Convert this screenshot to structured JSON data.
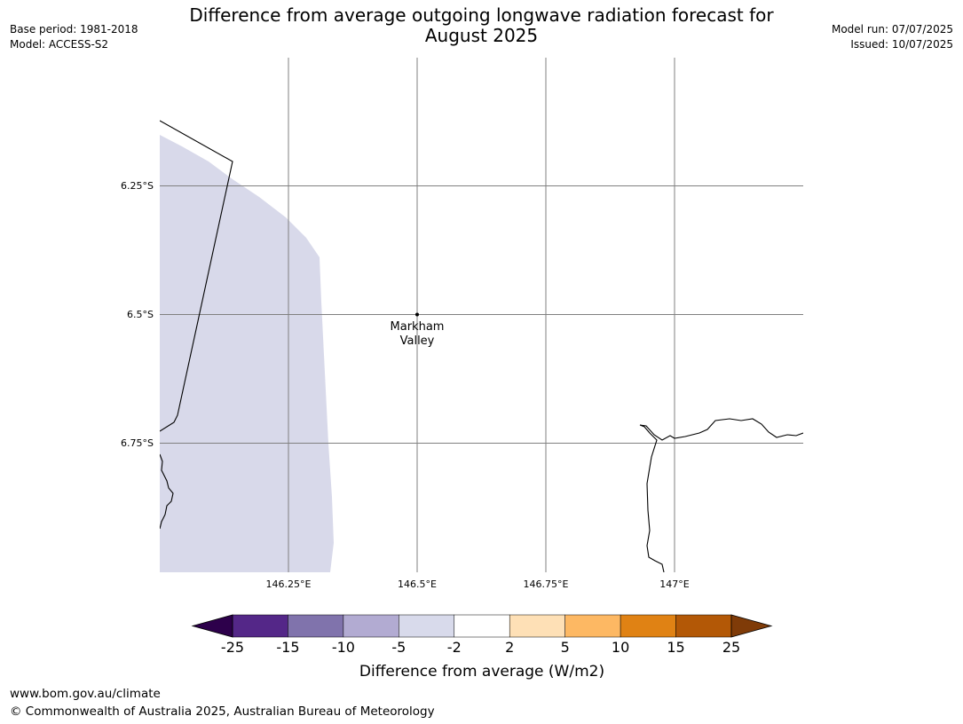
{
  "title_line1": "Difference from average outgoing longwave radiation forecast for",
  "title_line2": "August 2025",
  "meta_left": {
    "base_period": "Base period: 1981-2018",
    "model": "Model: ACCESS-S2"
  },
  "meta_right": {
    "model_run": "Model run: 07/07/2025",
    "issued": "Issued: 10/07/2025"
  },
  "map": {
    "lon_ticks": [
      "146.25°E",
      "146.5°E",
      "146.75°E",
      "147°E"
    ],
    "lat_ticks": [
      "6.25°S",
      "6.5°S",
      "6.75°S"
    ],
    "place": {
      "name_line1": "Markham",
      "name_line2": "Valley"
    },
    "colors": {
      "anomaly_fill": "#d8d9ea",
      "grid": "#808080",
      "coast": "#000000"
    }
  },
  "legend": {
    "ticks": [
      "-25",
      "-15",
      "-10",
      "-5",
      "-2",
      "2",
      "5",
      "10",
      "15",
      "25"
    ],
    "label": "Difference from average (W/m2)",
    "colors": {
      "under": "#2d004b",
      "bins": [
        "#542788",
        "#8073ac",
        "#b2abd2",
        "#d8daeb",
        "#ffffff",
        "#fee0b6",
        "#fdb863",
        "#e08214",
        "#b35806"
      ],
      "over": "#7f3b08"
    }
  },
  "footer": {
    "url": "www.bom.gov.au/climate",
    "copyright": "© Commonwealth of Australia 2025, Australian Bureau of Meteorology"
  }
}
